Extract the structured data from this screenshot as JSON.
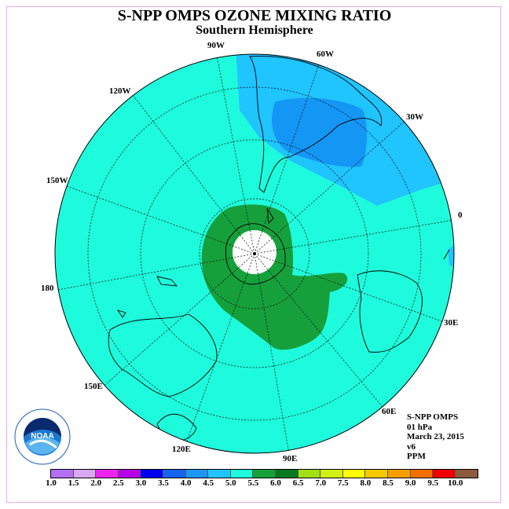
{
  "title": "S-NPP OMPS OZONE MIXING RATIO",
  "subtitle": "Southern Hemisphere",
  "lon_labels": {
    "w90": "90W",
    "w60": "60W",
    "w120": "120W",
    "w30": "30W",
    "w150": "150W",
    "zero": "0",
    "deg180": "180",
    "e30": "30E",
    "e150": "150E",
    "e60": "60E",
    "e120": "120E",
    "e90": "90E"
  },
  "info": {
    "instrument": "S-NPP OMPS",
    "level": "01 hPa",
    "date": "March 23, 2015",
    "version": "v6",
    "units": "PPM"
  },
  "logo_text": "NOAA",
  "colorbar": {
    "ticks": [
      "1.0",
      "1.5",
      "2.0",
      "2.5",
      "3.0",
      "3.5",
      "4.0",
      "4.5",
      "5.0",
      "5.5",
      "6.0",
      "6.5",
      "7.0",
      "7.5",
      "8.0",
      "8.5",
      "9.0",
      "9.5",
      "10.0"
    ],
    "colors": [
      "#b36ef2",
      "#d8a8f2",
      "#ee22ee",
      "#b800e8",
      "#0000ee",
      "#1464f0",
      "#1e96f5",
      "#20c4ff",
      "#1efadc",
      "#16a03c",
      "#087820",
      "#a0e014",
      "#d2f016",
      "#ffff00",
      "#f5c800",
      "#f59e00",
      "#f56e00",
      "#ee0000",
      "#8c5a3c"
    ]
  },
  "colors": {
    "background_field": "#1efadc",
    "low_field": "#20c4ff",
    "lower_field": "#1496f5",
    "polar_high": "#16a03c"
  }
}
